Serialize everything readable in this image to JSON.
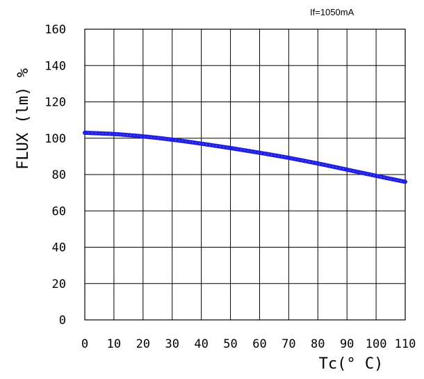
{
  "chart_data": {
    "type": "line",
    "annotation": "If=1050mA",
    "xlabel": "Tc(° C)",
    "ylabel": "FLUX (lm) %",
    "xlim": [
      0,
      110
    ],
    "ylim": [
      0,
      160
    ],
    "x_ticks": [
      "0",
      "10",
      "20",
      "30",
      "40",
      "50",
      "60",
      "70",
      "80",
      "90",
      "100",
      "110"
    ],
    "y_ticks": [
      "0",
      "20",
      "40",
      "60",
      "80",
      "100",
      "120",
      "140",
      "160"
    ],
    "grid": true,
    "series": [
      {
        "color": "#1f1fe0",
        "x": [
          0,
          10,
          20,
          30,
          40,
          50,
          60,
          70,
          80,
          90,
          100,
          110
        ],
        "y": [
          103,
          102.3,
          101,
          99.2,
          97,
          94.6,
          92,
          89.2,
          86.1,
          82.7,
          79.3,
          76
        ]
      }
    ]
  }
}
